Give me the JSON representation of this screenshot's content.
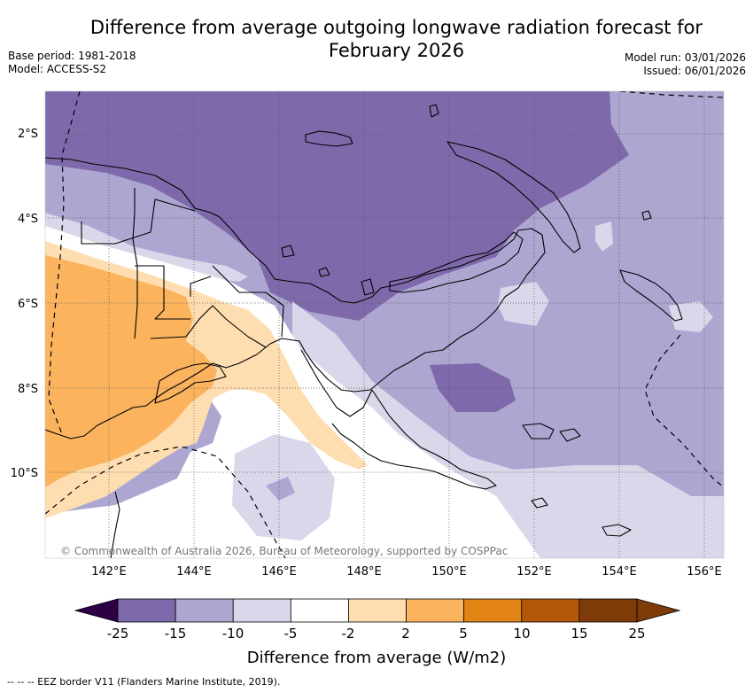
{
  "title": {
    "line1": "Difference from average outgoing longwave radiation forecast for",
    "line2": "February 2026"
  },
  "meta": {
    "base_period": "Base period: 1981-2018",
    "model": "Model: ACCESS-S2",
    "model_run": "Model run: 03/01/2026",
    "issued": "Issued: 06/01/2026"
  },
  "map": {
    "lon_ticks": [
      "142°E",
      "144°E",
      "146°E",
      "148°E",
      "150°E",
      "152°E",
      "154°E",
      "156°E"
    ],
    "lat_ticks": [
      "2°S",
      "4°S",
      "6°S",
      "8°S",
      "10°S"
    ],
    "copyright": "© Commonwealth of Australia 2026, Bureau of Meteorology, supported by COSPPac"
  },
  "legend": {
    "ticks": [
      "-25",
      "-15",
      "-10",
      "-5",
      "-2",
      "2",
      "5",
      "10",
      "15",
      "25"
    ],
    "colors": [
      "#592b88",
      "#7e6aab",
      "#ada6d1",
      "#d8d8ea",
      "#ffffff",
      "#fedeb0",
      "#fbb35e",
      "#e38417",
      "#b35808",
      "#7f3b08",
      "#2d0046"
    ],
    "title": "Difference from average (W/m2)"
  },
  "footer": {
    "eez_note": "--  --  -- EEZ border V11 (Flanders Marine Institute, 2019)."
  }
}
